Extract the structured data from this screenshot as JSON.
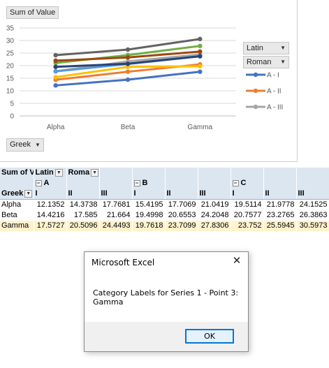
{
  "chart": {
    "value_button": "Sum of Value",
    "axis_button": "Greek",
    "legend_buttons": [
      "Latin",
      "Roman"
    ],
    "legend_entries": [
      {
        "label": "A - I",
        "color": "#4472c4"
      },
      {
        "label": "A - II",
        "color": "#ed7d31"
      },
      {
        "label": "A - III",
        "color": "#a5a5a5"
      }
    ],
    "dropdown_icon": "triangle-down-icon"
  },
  "chart_data": {
    "type": "line",
    "categories": [
      "Alpha",
      "Beta",
      "Gamma"
    ],
    "ylim": [
      0,
      35
    ],
    "yticks": [
      "0",
      "5",
      "10",
      "15",
      "20",
      "25",
      "30",
      "35"
    ],
    "grid": true,
    "legend_position": "right",
    "series": [
      {
        "name": "A - I",
        "color": "#4472c4",
        "values": [
          12.1352,
          14.4216,
          17.5727
        ]
      },
      {
        "name": "A - II",
        "color": "#ed7d31",
        "values": [
          14.3738,
          17.585,
          20.5096
        ]
      },
      {
        "color": "#a5a5a5",
        "values": [
          17.7681,
          21.664,
          24.4493
        ],
        "name": "A - III"
      },
      {
        "color": "#ffc000",
        "values": [
          15.4195,
          19.4998,
          19.7618
        ]
      },
      {
        "color": "#5b9bd5",
        "values": [
          17.7069,
          20.6553,
          23.7099
        ]
      },
      {
        "color": "#70ad47",
        "values": [
          21.0419,
          24.2048,
          27.8306
        ]
      },
      {
        "color": "#264478",
        "values": [
          19.5114,
          20.7577,
          23.752
        ]
      },
      {
        "color": "#9e480e",
        "values": [
          21.9778,
          23.2765,
          25.5945
        ]
      },
      {
        "color": "#636363",
        "values": [
          24.1525,
          26.3863,
          30.5973
        ]
      }
    ]
  },
  "pivot": {
    "header1": [
      "Sum of V",
      "Latin",
      "Roma"
    ],
    "groups": [
      "A",
      "B",
      "C"
    ],
    "row_label": "Greek",
    "subcols": [
      "I",
      "II",
      "III",
      "I",
      "II",
      "III",
      "I",
      "II",
      "III"
    ],
    "rows": [
      {
        "label": "Alpha",
        "values": [
          "12.1352",
          "14.3738",
          "17.7681",
          "15.4195",
          "17.7069",
          "21.0419",
          "19.5114",
          "21.9778",
          "24.1525"
        ]
      },
      {
        "label": "Beta",
        "values": [
          "14.4216",
          "17.585",
          "21.664",
          "19.4998",
          "20.6553",
          "24.2048",
          "20.7577",
          "23.2765",
          "26.3863"
        ]
      },
      {
        "label": "Gamma",
        "values": [
          "17.5727",
          "20.5096",
          "24.4493",
          "19.7618",
          "23.7099",
          "27.8306",
          "23.752",
          "25.5945",
          "30.5973"
        ]
      }
    ]
  },
  "dialog": {
    "title": "Microsoft Excel",
    "message_line1": "Category Labels for Series 1 - Point 3:",
    "message_line2": "Gamma",
    "ok": "OK",
    "close_icon": "close-icon"
  }
}
